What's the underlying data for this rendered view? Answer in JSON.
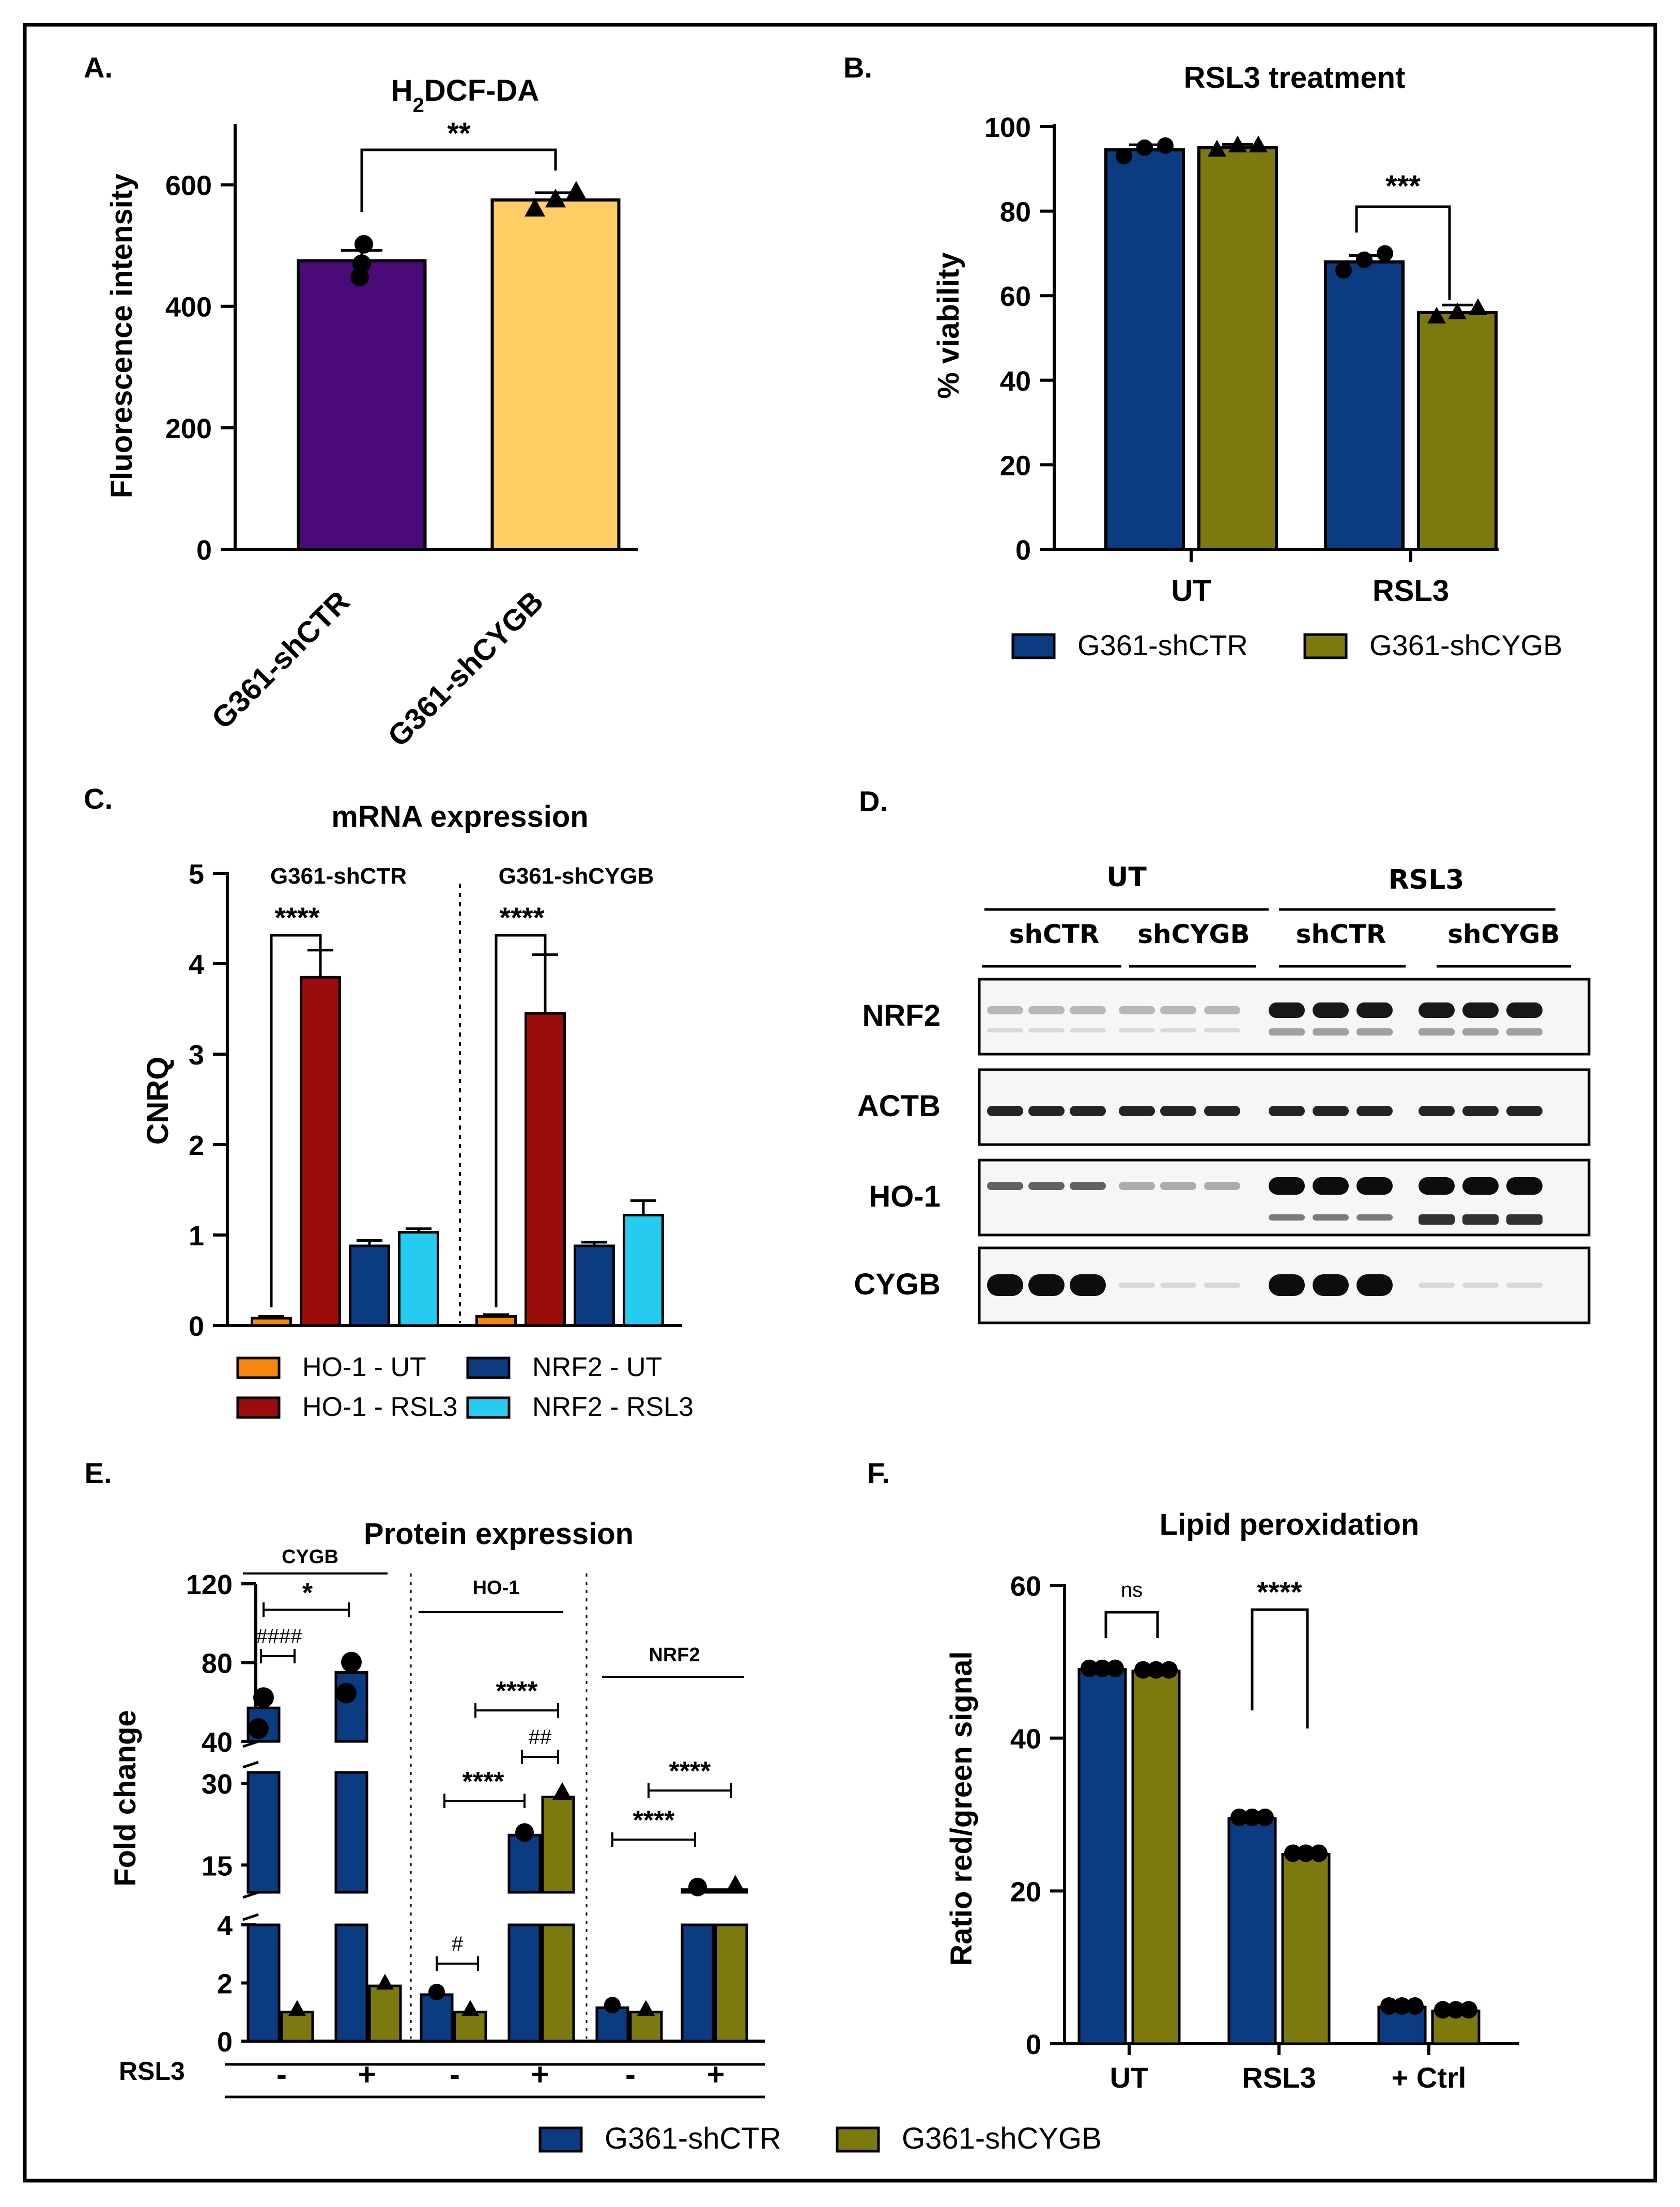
{
  "colors": {
    "shCTR": "#0B3B80",
    "shCYGB": "#7C7A0E",
    "purple": "#4A0A78",
    "yellow": "#FFCF66",
    "orange": "#F5870F",
    "darkred": "#9B0C0C",
    "cyan": "#26CBF0",
    "frame": "#000000"
  },
  "panels": {
    "A": {
      "letter": "A.",
      "title_main": "H",
      "title_sub": "2",
      "title_rest": "DCF-DA",
      "ylabel": "Fluorescence intensity",
      "significance": "**",
      "chart_data": {
        "type": "bar",
        "categories": [
          "G361-shCTR",
          "G361-shCYGB"
        ],
        "values": [
          475,
          575
        ],
        "errors": [
          17,
          12
        ],
        "points": [
          [
            448,
            470,
            502
          ],
          [
            560,
            575,
            588
          ]
        ],
        "ylim": [
          0,
          700
        ],
        "yticks": [
          "0",
          "200",
          "400",
          "600"
        ],
        "ytick_values": [
          0,
          200,
          400,
          600
        ]
      }
    },
    "B": {
      "letter": "B.",
      "title": "RSL3 treatment",
      "ylabel": "% viability",
      "significance": "***",
      "legend": [
        "G361-shCTR",
        "G361-shCYGB"
      ],
      "chart_data": {
        "type": "bar",
        "categories": [
          "UT",
          "RSL3"
        ],
        "series": [
          {
            "name": "G361-shCTR",
            "values": [
              94.5,
              68
            ],
            "errors": [
              1.2,
              1.5
            ],
            "points": [
              [
                93,
                95,
                95.5
              ],
              [
                66,
                68.5,
                70
              ]
            ]
          },
          {
            "name": "G361-shCYGB",
            "values": [
              95,
              56
            ],
            "errors": [
              0.8,
              1.8
            ],
            "points": [
              [
                94.5,
                95.5,
                95.5
              ],
              [
                55,
                56,
                57
              ]
            ]
          }
        ],
        "ylim": [
          0,
          100
        ],
        "yticks": [
          "0",
          "20",
          "40",
          "60",
          "80",
          "100"
        ],
        "ytick_values": [
          0,
          20,
          40,
          60,
          80,
          100
        ]
      }
    },
    "C": {
      "letter": "C.",
      "title": "mRNA expression",
      "ylabel": "CNRQ",
      "groups": [
        "G361-shCTR",
        "G361-shCYGB"
      ],
      "significance": [
        "****",
        "****"
      ],
      "legend": [
        "HO-1 - UT",
        "NRF2 - UT",
        "HO-1 - RSL3",
        "NRF2 - RSL3"
      ],
      "chart_data": {
        "type": "bar",
        "categories": [
          "G361-shCTR",
          "G361-shCYGB"
        ],
        "series": [
          {
            "name": "HO-1 - UT",
            "values": [
              0.08,
              0.1
            ],
            "errors": [
              0.02,
              0.02
            ]
          },
          {
            "name": "HO-1 - RSL3",
            "values": [
              3.85,
              3.45
            ],
            "errors": [
              0.3,
              0.65
            ]
          },
          {
            "name": "NRF2 - UT",
            "values": [
              0.88,
              0.88
            ],
            "errors": [
              0.06,
              0.04
            ]
          },
          {
            "name": "NRF2 - RSL3",
            "values": [
              1.03,
              1.22
            ],
            "errors": [
              0.04,
              0.16
            ]
          }
        ],
        "ylim": [
          0,
          5
        ],
        "yticks": [
          "0",
          "1",
          "2",
          "3",
          "4",
          "5"
        ],
        "ytick_values": [
          0,
          1,
          2,
          3,
          4,
          5
        ]
      }
    },
    "D": {
      "letter": "D.",
      "conditions": [
        "UT",
        "RSL3"
      ],
      "subgroups": [
        "shCTR",
        "shCYGB",
        "shCTR",
        "shCYGB"
      ],
      "rows": [
        "NRF2",
        "ACTB",
        "HO-1",
        "CYGB"
      ]
    },
    "E": {
      "letter": "E.",
      "title": "Protein expression",
      "ylabel": "Fold change",
      "xrow_label": "RSL3",
      "xrow_signs": [
        "-",
        "+",
        "-",
        "+",
        "-",
        "+"
      ],
      "group_labels": [
        "CYGB",
        "HO-1",
        "NRF2"
      ],
      "ytick_top": [
        "40",
        "80",
        "120"
      ],
      "ytick_mid": [
        "15",
        "30"
      ],
      "ytick_bot": [
        "0",
        "2",
        "4"
      ],
      "annotations": [
        "*",
        "####",
        "****",
        "##",
        "****",
        "#",
        "****",
        "****"
      ],
      "legend": [
        "G361-shCTR",
        "G361-shCYGB"
      ],
      "chart_data": {
        "type": "bar",
        "broken_axis": [
          [
            0,
            4
          ],
          [
            10,
            32
          ],
          [
            40,
            120
          ]
        ],
        "groups": [
          {
            "name": "CYGB",
            "shCTR": [
              57,
              75
            ],
            "shCYGB": [
              1.0,
              1.9
            ]
          },
          {
            "name": "HO-1",
            "shCTR": [
              1.6,
              20.5
            ],
            "shCYGB": [
              1.0,
              27.5
            ]
          },
          {
            "name": "NRF2",
            "shCTR": [
              1.15,
              10.5
            ],
            "shCYGB": [
              1.0,
              10.5
            ]
          }
        ]
      }
    },
    "F": {
      "letter": "F.",
      "title": "Lipid peroxidation",
      "ylabel": "Ratio red/green signal",
      "annotations": [
        "ns",
        "****"
      ],
      "chart_data": {
        "type": "bar",
        "categories": [
          "UT",
          "RSL3",
          "+ Ctrl"
        ],
        "series": [
          {
            "name": "G361-shCTR",
            "values": [
              49,
              29.5,
              4.8
            ]
          },
          {
            "name": "G361-shCYGB",
            "values": [
              48.8,
              24.8,
              4.3
            ]
          }
        ],
        "ylim": [
          0,
          60
        ],
        "yticks": [
          "0",
          "20",
          "40",
          "60"
        ],
        "ytick_values": [
          0,
          20,
          40,
          60
        ]
      }
    }
  }
}
